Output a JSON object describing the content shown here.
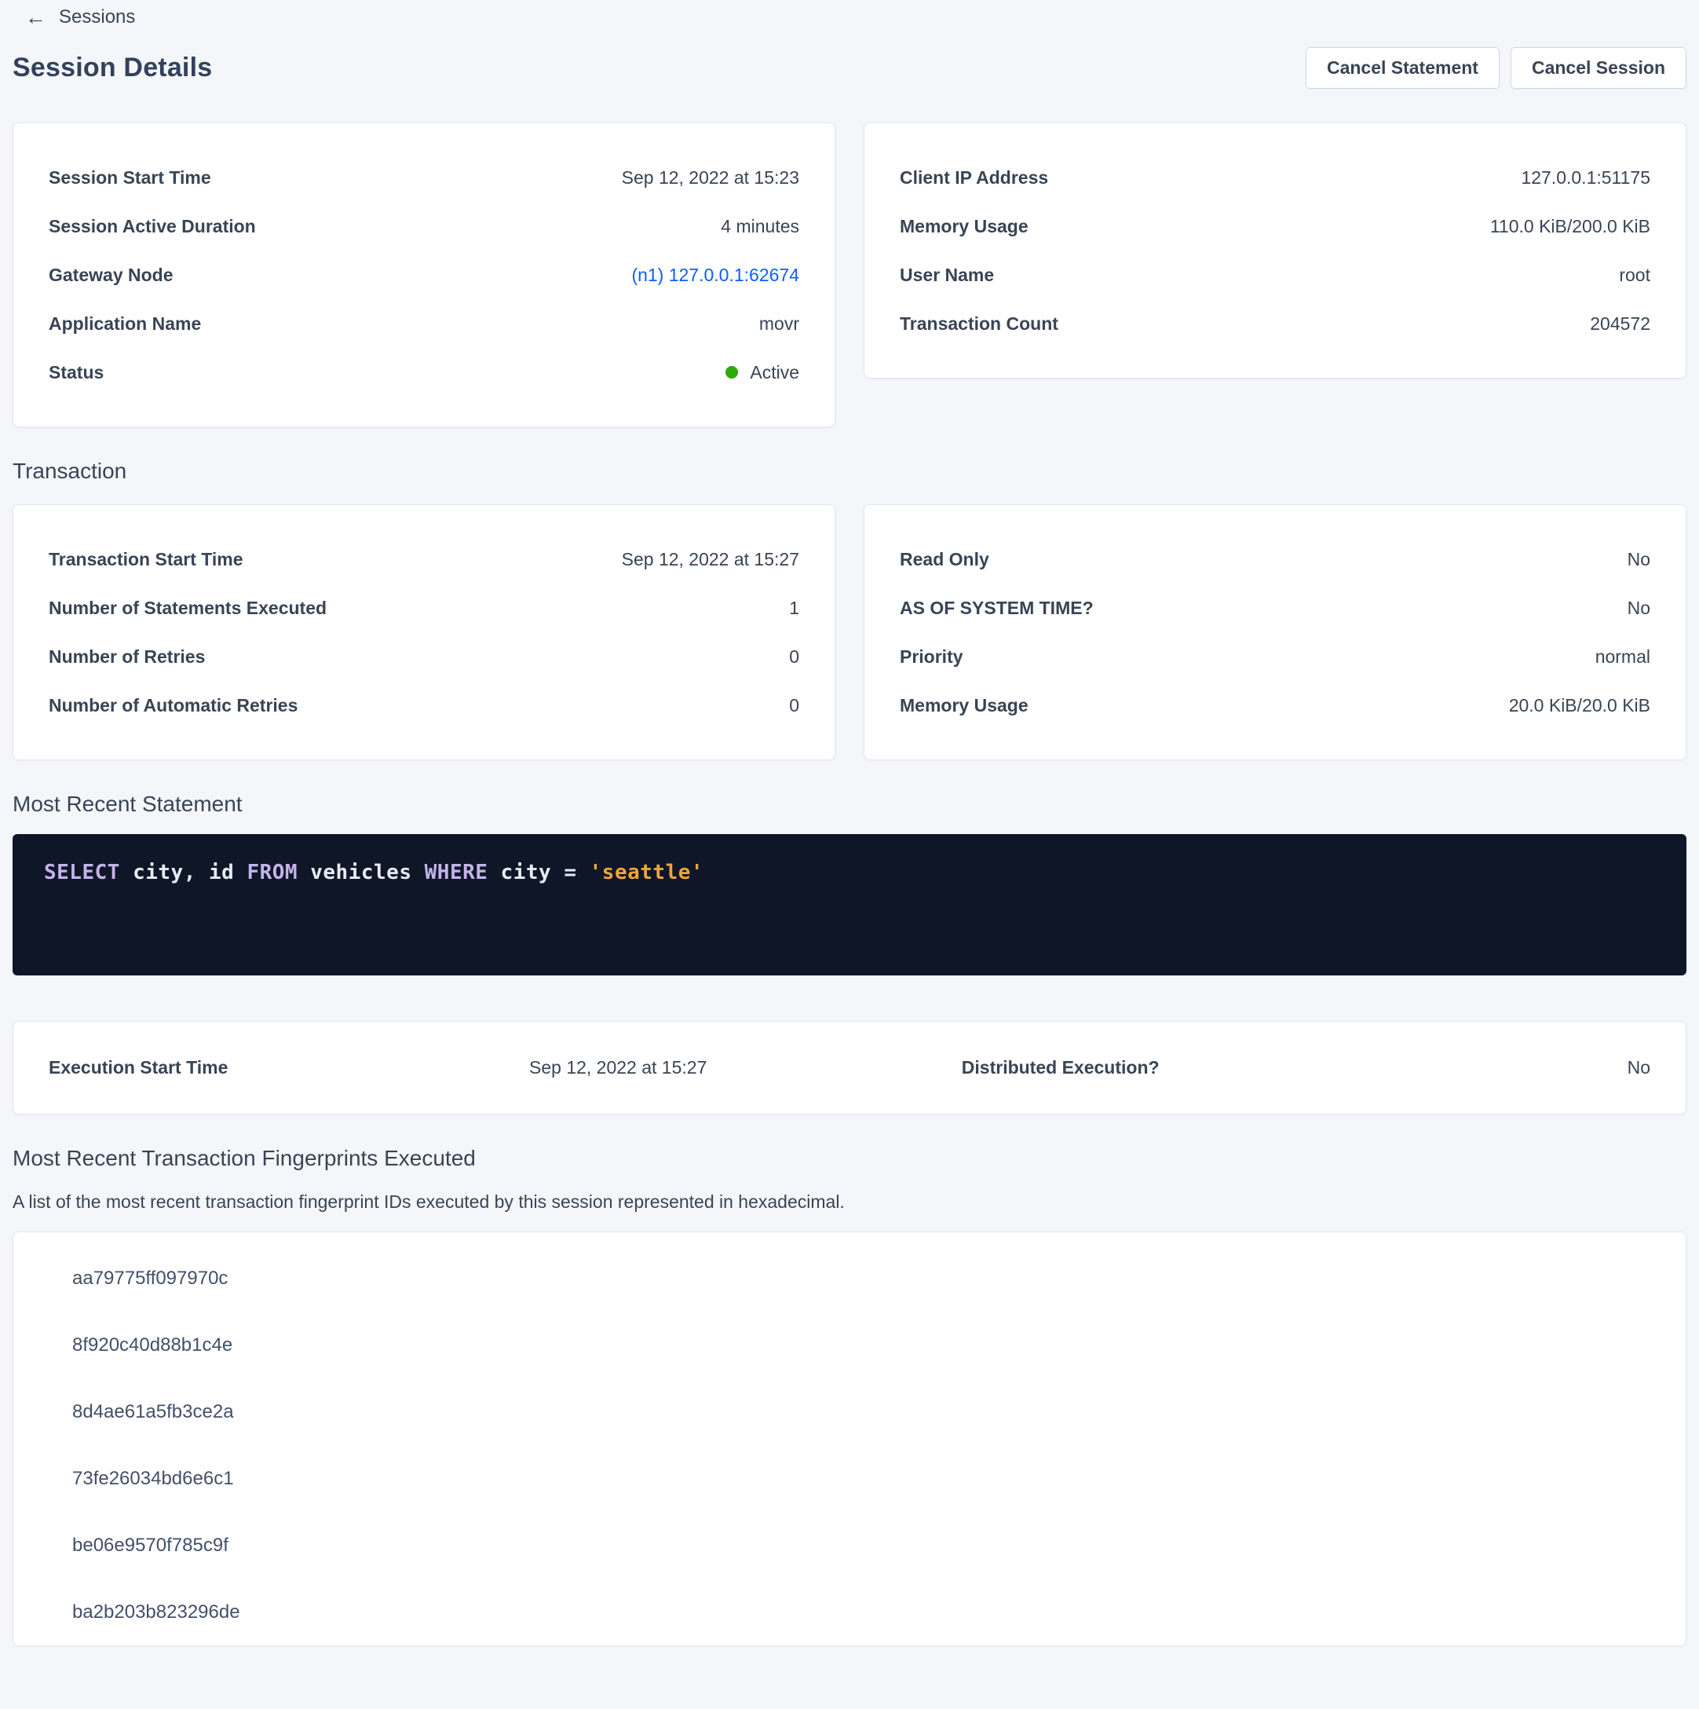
{
  "colors": {
    "accent_blue": "#0b5fff",
    "status_green": "#2daa06",
    "code_background": "#0f1628",
    "sql_keyword": "#c5b3ea",
    "sql_string": "#efa53f"
  },
  "nav": {
    "back_label": "Sessions",
    "back_icon": "arrow-left-icon"
  },
  "header": {
    "title": "Session Details",
    "cancel_statement_label": "Cancel Statement",
    "cancel_session_label": "Cancel Session"
  },
  "session": {
    "left": {
      "rows": [
        {
          "label": "Session Start Time",
          "value": "Sep 12, 2022 at 15:23"
        },
        {
          "label": "Session Active Duration",
          "value": "4 minutes"
        },
        {
          "label": "Gateway Node",
          "value": "(n1) 127.0.0.1:62674"
        },
        {
          "label": "Application Name",
          "value": "movr"
        },
        {
          "label": "Status",
          "value": "Active"
        }
      ]
    },
    "right": {
      "rows": [
        {
          "label": "Client IP Address",
          "value": "127.0.0.1:51175"
        },
        {
          "label": "Memory Usage",
          "value": "110.0 KiB/200.0 KiB"
        },
        {
          "label": "User Name",
          "value": "root"
        },
        {
          "label": "Transaction Count",
          "value": "204572"
        }
      ]
    }
  },
  "transaction": {
    "heading": "Transaction",
    "left": {
      "rows": [
        {
          "label": "Transaction Start Time",
          "value": "Sep 12, 2022 at 15:27"
        },
        {
          "label": "Number of Statements Executed",
          "value": "1"
        },
        {
          "label": "Number of Retries",
          "value": "0"
        },
        {
          "label": "Number of Automatic Retries",
          "value": "0"
        }
      ]
    },
    "right": {
      "rows": [
        {
          "label": "Read Only",
          "value": "No"
        },
        {
          "label": "AS OF SYSTEM TIME?",
          "value": "No"
        },
        {
          "label": "Priority",
          "value": "normal"
        },
        {
          "label": "Memory Usage",
          "value": "20.0 KiB/20.0 KiB"
        }
      ]
    }
  },
  "statement": {
    "heading": "Most Recent Statement",
    "sql_text": "SELECT city, id FROM vehicles WHERE city = 'seattle'",
    "sql_tokens": [
      {
        "text": "SELECT",
        "type": "keyword"
      },
      {
        "text": " city, id ",
        "type": "plain"
      },
      {
        "text": "FROM",
        "type": "keyword"
      },
      {
        "text": " vehicles ",
        "type": "plain"
      },
      {
        "text": "WHERE",
        "type": "keyword"
      },
      {
        "text": " city = ",
        "type": "plain"
      },
      {
        "text": "'seattle'",
        "type": "string"
      }
    ],
    "execution": {
      "start_label": "Execution Start Time",
      "start_value": "Sep 12, 2022 at 15:27",
      "distributed_label": "Distributed Execution?",
      "distributed_value": "No"
    }
  },
  "fingerprints": {
    "heading": "Most Recent Transaction Fingerprints Executed",
    "description": "A list of the most recent transaction fingerprint IDs executed by this session represented in hexadecimal.",
    "items": [
      "aa79775ff097970c",
      "8f920c40d88b1c4e",
      "8d4ae61a5fb3ce2a",
      "73fe26034bd6e6c1",
      "be06e9570f785c9f",
      "ba2b203b823296de"
    ]
  }
}
